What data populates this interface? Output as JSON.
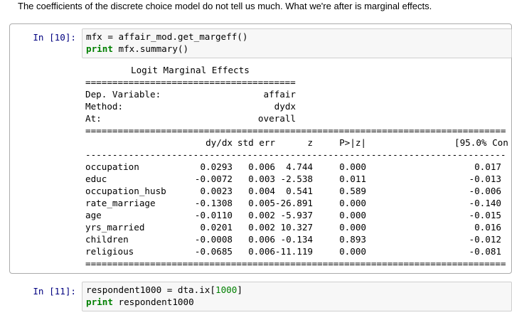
{
  "markdown": "The coefficients of the discrete choice model do not tell us much. What we're after is marginal effects.",
  "cell10": {
    "prompt": "In [10]:",
    "line1": "mfx = affair_mod.get_margeff()",
    "line2_kw": "print",
    "line2_rest": " mfx.summary()"
  },
  "output": {
    "title": "Logit Marginal Effects",
    "info": [
      {
        "label": "Dep. Variable:",
        "value": "affair"
      },
      {
        "label": "Method:",
        "value": "dydx"
      },
      {
        "label": "At:",
        "value": "overall"
      }
    ],
    "headers": [
      "dy/dx",
      "std err",
      "z",
      "P>|z|",
      "[95.0% Con"
    ],
    "rows": [
      {
        "name": "occupation",
        "vals": [
          "0.0293",
          "0.006",
          "4.744",
          "0.000",
          "0.017"
        ]
      },
      {
        "name": "educ",
        "vals": [
          "-0.0072",
          "0.003",
          "-2.538",
          "0.011",
          "-0.013"
        ]
      },
      {
        "name": "occupation_husb",
        "vals": [
          "0.0023",
          "0.004",
          "0.541",
          "0.589",
          "-0.006"
        ]
      },
      {
        "name": "rate_marriage",
        "vals": [
          "-0.1308",
          "0.005",
          "-26.891",
          "0.000",
          "-0.140"
        ]
      },
      {
        "name": "age",
        "vals": [
          "-0.0110",
          "0.002",
          "-5.937",
          "0.000",
          "-0.015"
        ]
      },
      {
        "name": "yrs_married",
        "vals": [
          "0.0201",
          "0.002",
          "10.327",
          "0.000",
          "0.016"
        ]
      },
      {
        "name": "children",
        "vals": [
          "-0.0008",
          "0.006",
          "-0.134",
          "0.893",
          "-0.012"
        ]
      },
      {
        "name": "religious",
        "vals": [
          "-0.0685",
          "0.006",
          "-11.119",
          "0.000",
          "-0.081"
        ]
      }
    ]
  },
  "cell11": {
    "prompt": "In [11]:",
    "line1_a": "respondent1000 = dta.ix[",
    "line1_num": "1000",
    "line1_b": "]",
    "line2_kw": "print",
    "line2_rest": " respondent1000"
  }
}
